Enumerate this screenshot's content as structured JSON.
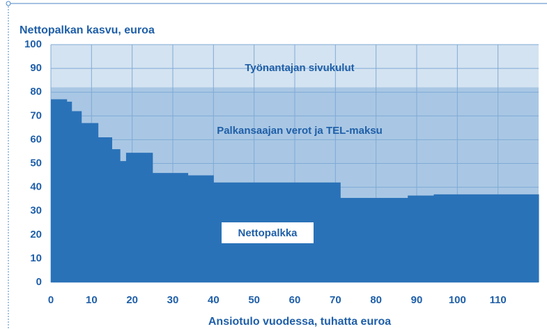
{
  "chart_data": {
    "type": "step-area",
    "title": "Nettopalkan kasvu, euroa",
    "x_label": "Ansiotulo vuodessa, tuhatta euroa",
    "xlim": [
      0,
      120
    ],
    "ylim": [
      0,
      100
    ],
    "xticks": [
      0,
      10,
      20,
      30,
      40,
      50,
      60,
      70,
      80,
      90,
      100,
      110
    ],
    "yticks": [
      0,
      10,
      20,
      30,
      40,
      50,
      60,
      70,
      80,
      90,
      100
    ],
    "grid": true,
    "series": [
      {
        "name": "Nettopalkka",
        "color": "#2a72b8",
        "x": [
          0,
          3.9,
          5.1,
          7.5,
          11.6,
          15,
          17,
          18.5,
          25,
          33.7,
          40,
          71.2,
          87.8,
          94.2
        ],
        "values": [
          77,
          76,
          72,
          67,
          61,
          56,
          51,
          54.5,
          46,
          45,
          42,
          35.5,
          36.5,
          37
        ]
      }
    ],
    "regions": [
      {
        "name": "Työnantajan sivukulut",
        "color": "#d4e3f1",
        "top": 100
      },
      {
        "name": "Palkansaajan verot ja TEL-maksu",
        "color": "#a9c7e4",
        "top": 82
      }
    ]
  }
}
